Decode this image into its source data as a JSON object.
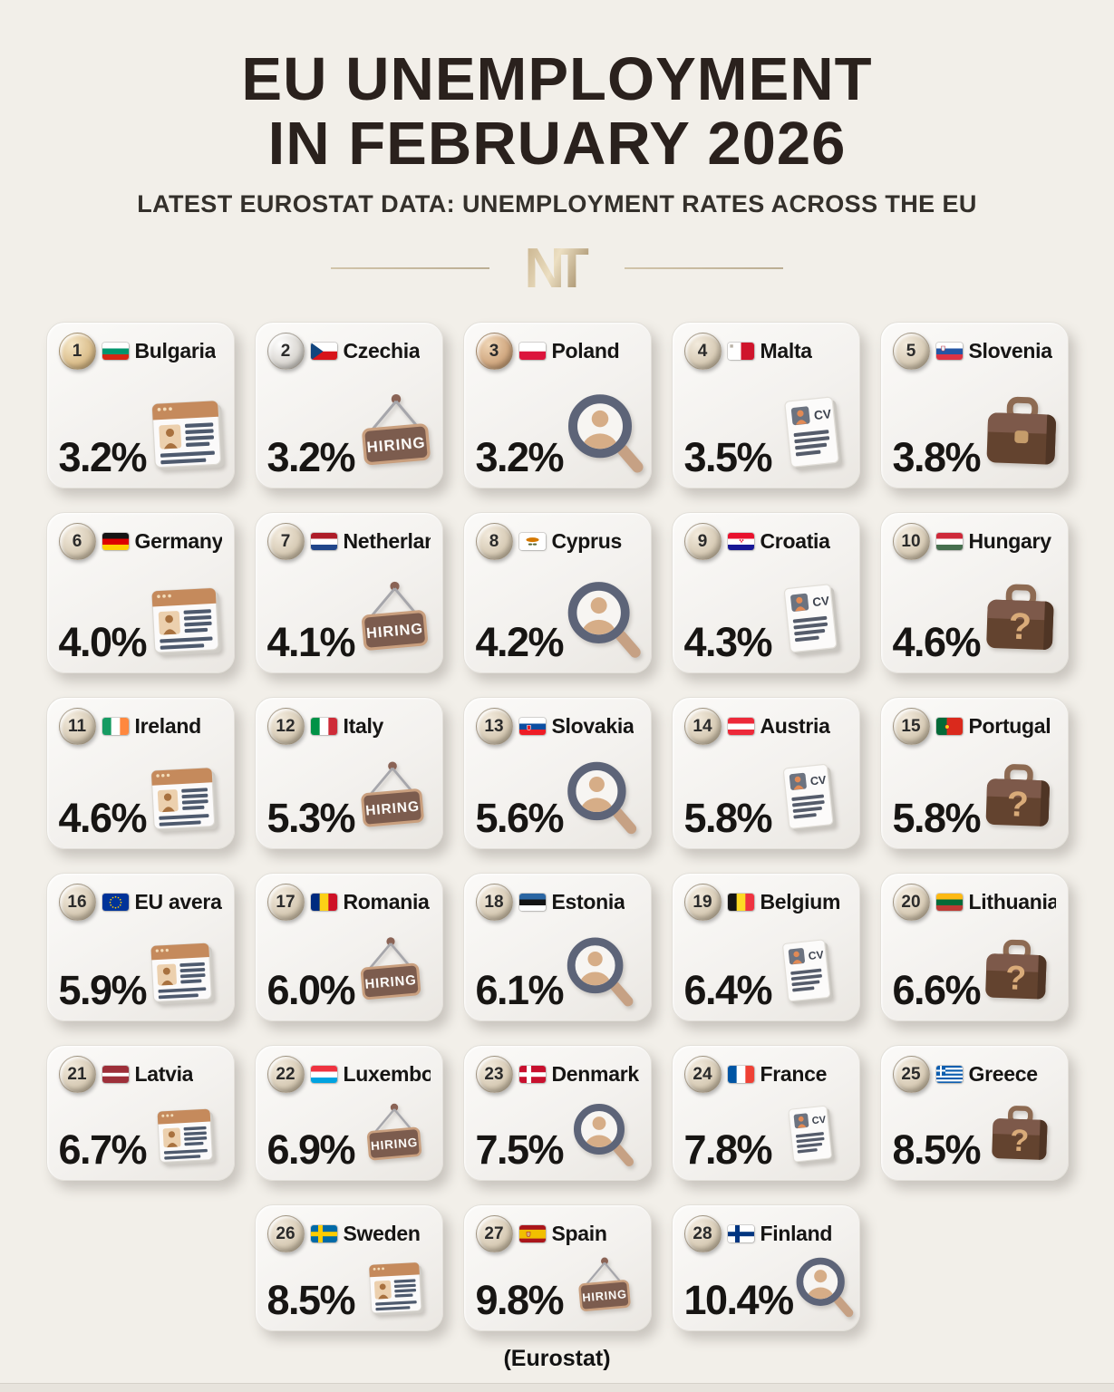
{
  "header": {
    "title_line1": "EU UNEMPLOYMENT",
    "title_line2": "IN FEBRUARY 2026",
    "subtitle": "LATEST EUROSTAT DATA: UNEMPLOYMENT RATES ACROSS THE EU",
    "logo": "NT"
  },
  "footer": {
    "source": "(Eurostat)"
  },
  "labels": {
    "hiring": "HIRING",
    "cv": "CV",
    "question": "?"
  },
  "colors": {
    "page_bg": "#f2efe9",
    "card_bg": "#f4f2ee",
    "title": "#2a211d",
    "rate_text": "#171513",
    "accent_gold": "#c3ac85",
    "badge_gold": "#dcc08f",
    "badge_silver": "#dbd8d3",
    "badge_bronze": "#d2aa83"
  },
  "chart_data": {
    "type": "table",
    "title": "EU Unemployment in February 2026",
    "subtitle": "Latest Eurostat data: unemployment rates across the EU",
    "unit": "%",
    "source": "(Eurostat)",
    "entries": [
      {
        "rank": 1,
        "country": "Bulgaria",
        "value": 3.2,
        "label": "3.2%",
        "icon": "resume-browser",
        "badge": "gold",
        "flag": {
          "type": "h",
          "colors": [
            "#ffffff",
            "#00966E",
            "#D62612"
          ]
        }
      },
      {
        "rank": 2,
        "country": "Czechia",
        "value": 3.2,
        "label": "3.2%",
        "icon": "hiring-sign",
        "badge": "silver",
        "flag": {
          "type": "czech",
          "colors": [
            "#ffffff",
            "#D7141A",
            "#11457E"
          ]
        }
      },
      {
        "rank": 3,
        "country": "Poland",
        "value": 3.2,
        "label": "3.2%",
        "icon": "candidate-search",
        "badge": "bronze",
        "flag": {
          "type": "h",
          "colors": [
            "#ffffff",
            "#DC143C"
          ]
        }
      },
      {
        "rank": 4,
        "country": "Malta",
        "value": 3.5,
        "label": "3.5%",
        "icon": "cv-document",
        "badge": "champagne",
        "flag": {
          "type": "malta",
          "colors": [
            "#ffffff",
            "#CF142B"
          ],
          "cross": "#b9b2a6"
        }
      },
      {
        "rank": 5,
        "country": "Slovenia",
        "value": 3.8,
        "label": "3.8%",
        "icon": "briefcase",
        "badge": "champagne",
        "flag": {
          "type": "h",
          "colors": [
            "#ffffff",
            "#2456A4",
            "#DD3344"
          ],
          "emblem": {
            "shape": "shield",
            "x": 7.5,
            "y": 6.6,
            "colors": [
              "#e8eef6",
              "#c23b47"
            ]
          }
        }
      },
      {
        "rank": 6,
        "country": "Germany",
        "value": 4.0,
        "label": "4.0%",
        "icon": "resume-browser",
        "badge": "champagne",
        "flag": {
          "type": "h",
          "colors": [
            "#141414",
            "#DD0000",
            "#FFCE00"
          ]
        }
      },
      {
        "rank": 7,
        "country": "Netherlands",
        "value": 4.1,
        "label": "4.1%",
        "icon": "hiring-sign",
        "badge": "champagne",
        "flag": {
          "type": "h",
          "colors": [
            "#AE1C28",
            "#ffffff",
            "#21468B"
          ]
        }
      },
      {
        "rank": 8,
        "country": "Cyprus",
        "value": 4.2,
        "label": "4.2%",
        "icon": "candidate-search",
        "badge": "champagne",
        "flag": {
          "type": "cyprus",
          "colors": [
            "#ffffff",
            "#D57800",
            "#5b6b3a"
          ]
        }
      },
      {
        "rank": 9,
        "country": "Croatia",
        "value": 4.3,
        "label": "4.3%",
        "icon": "cv-document",
        "badge": "champagne",
        "flag": {
          "type": "h",
          "colors": [
            "#E8112D",
            "#ffffff",
            "#171796"
          ],
          "emblem": {
            "shape": "checker",
            "x": 15,
            "y": 10,
            "colors": [
              "#E8112D",
              "#ffffff"
            ]
          }
        }
      },
      {
        "rank": 10,
        "country": "Hungary",
        "value": 4.6,
        "label": "4.6%",
        "icon": "briefcase-question",
        "badge": "champagne",
        "flag": {
          "type": "h",
          "colors": [
            "#CE2939",
            "#ffffff",
            "#477050"
          ]
        }
      },
      {
        "rank": 11,
        "country": "Ireland",
        "value": 4.6,
        "label": "4.6%",
        "icon": "resume-browser",
        "badge": "champagne",
        "flag": {
          "type": "v",
          "colors": [
            "#169B62",
            "#ffffff",
            "#FF883E"
          ]
        }
      },
      {
        "rank": 12,
        "country": "Italy",
        "value": 5.3,
        "label": "5.3%",
        "icon": "hiring-sign",
        "badge": "champagne",
        "flag": {
          "type": "v",
          "colors": [
            "#009246",
            "#ffffff",
            "#CE2B37"
          ]
        }
      },
      {
        "rank": 13,
        "country": "Slovakia",
        "value": 5.6,
        "label": "5.6%",
        "icon": "candidate-search",
        "badge": "champagne",
        "flag": {
          "type": "h",
          "colors": [
            "#ffffff",
            "#0B4EA2",
            "#EE1C25"
          ],
          "emblem": {
            "shape": "shield",
            "x": 10.5,
            "y": 11,
            "colors": [
              "#EE1C25",
              "#ffffff"
            ]
          }
        }
      },
      {
        "rank": 14,
        "country": "Austria",
        "value": 5.8,
        "label": "5.8%",
        "icon": "cv-document",
        "badge": "champagne",
        "flag": {
          "type": "h",
          "colors": [
            "#ED2939",
            "#ffffff",
            "#ED2939"
          ]
        }
      },
      {
        "rank": 15,
        "country": "Portugal",
        "value": 5.8,
        "label": "5.8%",
        "icon": "briefcase-question",
        "badge": "champagne",
        "flag": {
          "type": "v",
          "ratios": [
            2,
            3
          ],
          "colors": [
            "#046A38",
            "#DA291C"
          ],
          "emblem": {
            "shape": "circle",
            "x": 12,
            "y": 10,
            "colors": [
              "#F8D515",
              "#C8102E"
            ]
          }
        }
      },
      {
        "rank": 16,
        "country": "EU average",
        "value": 5.9,
        "label": "5.9%",
        "icon": "resume-browser",
        "badge": "champagne",
        "flag": {
          "type": "eu",
          "field": "#003399",
          "stars": "#FFCC00"
        }
      },
      {
        "rank": 17,
        "country": "Romania",
        "value": 6.0,
        "label": "6.0%",
        "icon": "hiring-sign",
        "badge": "champagne",
        "flag": {
          "type": "v",
          "colors": [
            "#002B7F",
            "#FCD116",
            "#CE1126"
          ]
        }
      },
      {
        "rank": 18,
        "country": "Estonia",
        "value": 6.1,
        "label": "6.1%",
        "icon": "candidate-search",
        "badge": "champagne",
        "flag": {
          "type": "h",
          "colors": [
            "#2b66a3",
            "#141414",
            "#ffffff"
          ]
        }
      },
      {
        "rank": 19,
        "country": "Belgium",
        "value": 6.4,
        "label": "6.4%",
        "icon": "cv-document",
        "badge": "champagne",
        "flag": {
          "type": "v",
          "colors": [
            "#141414",
            "#FDDA24",
            "#EF3340"
          ]
        }
      },
      {
        "rank": 20,
        "country": "Lithuania",
        "value": 6.6,
        "label": "6.6%",
        "icon": "briefcase-question",
        "badge": "champagne",
        "flag": {
          "type": "h",
          "colors": [
            "#FDB913",
            "#046A38",
            "#BE3A34"
          ]
        }
      },
      {
        "rank": 21,
        "country": "Latvia",
        "value": 6.7,
        "label": "6.7%",
        "icon": "resume-browser",
        "badge": "champagne",
        "flag": {
          "type": "h",
          "ratios": [
            2,
            1,
            2
          ],
          "colors": [
            "#9d2f39",
            "#ffffff",
            "#9d2f39"
          ]
        }
      },
      {
        "rank": 22,
        "country": "Luxembourg",
        "value": 6.9,
        "label": "6.9%",
        "icon": "hiring-sign",
        "badge": "champagne",
        "flag": {
          "type": "h",
          "colors": [
            "#EF3340",
            "#ffffff",
            "#00A3E0"
          ]
        }
      },
      {
        "rank": 23,
        "country": "Denmark",
        "value": 7.5,
        "label": "7.5%",
        "icon": "candidate-search",
        "badge": "champagne",
        "flag": {
          "type": "nordic",
          "field": "#C8102E",
          "cross": "#ffffff"
        }
      },
      {
        "rank": 24,
        "country": "France",
        "value": 7.8,
        "label": "7.8%",
        "icon": "cv-document",
        "badge": "champagne",
        "flag": {
          "type": "v",
          "colors": [
            "#0055A4",
            "#ffffff",
            "#EF4135"
          ]
        }
      },
      {
        "rank": 25,
        "country": "Greece",
        "value": 8.5,
        "label": "8.5%",
        "icon": "briefcase-question",
        "badge": "champagne",
        "flag": {
          "type": "greece",
          "blue": "#0D5EAF",
          "white": "#ffffff"
        }
      },
      {
        "rank": 26,
        "country": "Sweden",
        "value": 8.5,
        "label": "8.5%",
        "icon": "resume-browser",
        "badge": "champagne",
        "flag": {
          "type": "nordic",
          "field": "#006AA7",
          "cross": "#FECC02"
        }
      },
      {
        "rank": 27,
        "country": "Spain",
        "value": 9.8,
        "label": "9.8%",
        "icon": "hiring-sign",
        "badge": "champagne",
        "flag": {
          "type": "h",
          "ratios": [
            1,
            2,
            1
          ],
          "colors": [
            "#AA151B",
            "#F1BF00",
            "#AA151B"
          ],
          "emblem": {
            "shape": "shield",
            "x": 10,
            "y": 10,
            "colors": [
              "#d5b17c",
              "#ad1519"
            ]
          }
        }
      },
      {
        "rank": 28,
        "country": "Finland",
        "value": 10.4,
        "label": "10.4%",
        "icon": "candidate-search",
        "badge": "champagne",
        "flag": {
          "type": "nordic",
          "field": "#ffffff",
          "cross": "#003580"
        }
      }
    ]
  }
}
